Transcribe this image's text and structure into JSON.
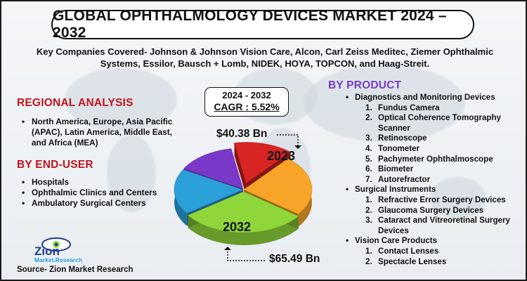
{
  "title": "GLOBAL OPHTHALMOLOGY DEVICES MARKET 2024 – 2032",
  "companies_line1": "Key Companies Covered- Johnson & Johnson Vision Care, Alcon, Carl Zeiss Meditec, Ziemer Ophthalmic",
  "companies_line2": "Systems, Essilor, Bausch + Lomb, NIDEK, HOYA, TOPCON, and Haag-Streit.",
  "regional": {
    "title": "REGIONAL ANALYSIS",
    "items": [
      "North America, Europe, Asia Pacific (APAC), Latin America, Middle East, and Africa (MEA)"
    ]
  },
  "end_user": {
    "title": "BY END-USER",
    "items": [
      "Hospitals",
      "Ophthalmic Clinics and Centers",
      "Ambulatory Surgical Centers"
    ]
  },
  "cagr": {
    "years": "2024 - 2032",
    "value": "CAGR : 5.52%"
  },
  "chart_data": {
    "type": "pie",
    "slices": [
      {
        "label": "2023",
        "color": "#d92424"
      },
      {
        "label": "",
        "color": "#f7a428"
      },
      {
        "label": "2032",
        "color": "#8fd63a"
      },
      {
        "label": "",
        "color": "#2a9fd8"
      },
      {
        "label": "",
        "color": "#7a38c8"
      }
    ],
    "values": [
      14,
      24,
      30,
      18,
      14
    ],
    "value_2023": "$40.38 Bn",
    "value_2032": "$65.49 Bn"
  },
  "product": {
    "title": "BY PRODUCT",
    "groups": [
      {
        "label": "Diagnostics and Monitoring Devices",
        "items": [
          "Fundus Camera",
          "Optical Coherence Tomography Scanner",
          "Retinoscope",
          "Tonometer",
          "Pachymeter Ophthalmoscope",
          "Biometer",
          "Autorefractor"
        ]
      },
      {
        "label": "Surgical Instruments",
        "items": [
          "Refractive Error Surgery Devices",
          "Glaucoma Surgery Devices",
          "Cataract and Vitreoretinal Surgery Devices"
        ]
      },
      {
        "label": "Vision Care Products",
        "items": [
          "Contact Lenses",
          "Spectacle Lenses"
        ]
      }
    ]
  },
  "logo": {
    "name": "Zion",
    "tagline": "Market.Research"
  },
  "source": "Source- Zion Market Research"
}
